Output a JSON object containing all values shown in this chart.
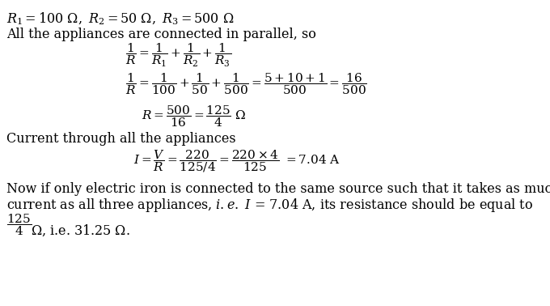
{
  "bg_color": "#ffffff",
  "text_color": "#000000",
  "figsize": [
    6.8,
    3.78
  ],
  "dpi": 100,
  "line1": "$R_1 = 100\\ \\Omega,\\ R_2 = 50\\ \\Omega,\\ R_3 = 500\\ \\Omega$",
  "line2": "All the appliances are connected in parallel, so",
  "eq1": "$\\dfrac{1}{R} = \\dfrac{1}{R_1} + \\dfrac{1}{R_2} + \\dfrac{1}{R_3}$",
  "eq2": "$\\dfrac{1}{R} = \\dfrac{1}{100} + \\dfrac{1}{50} + \\dfrac{1}{500} = \\dfrac{5 + 10 + 1}{500} = \\dfrac{16}{500}$",
  "eq3": "$R = \\dfrac{500}{16} = \\dfrac{125}{4}\\ \\Omega$",
  "line3": "Current through all the appliances",
  "eq4": "$I = \\dfrac{V}{R} = \\dfrac{220}{125/4} = \\dfrac{220 \\times 4}{125}\\ = 7.04\\ \\mathrm{A}$",
  "line4": "Now if only electric iron is connected to the same source such that it takes as much",
  "line5": "current as all three appliances, $i.e.\\ I$ = 7.04 A, its resistance should be equal to",
  "frac_last": "$\\dfrac{125}{4}$",
  "line6": "$\\Omega$, i.e. 31.25 $\\Omega$."
}
